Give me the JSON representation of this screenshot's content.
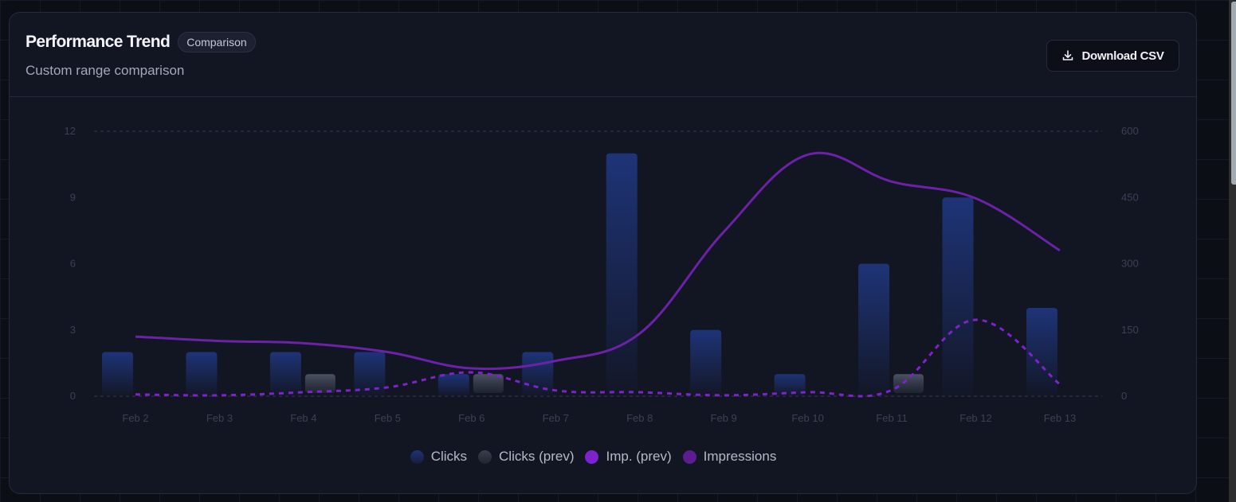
{
  "header": {
    "title": "Performance Trend",
    "badge": "Comparison",
    "subtitle": "Custom range comparison",
    "download_label": "Download CSV",
    "download_icon": "download-icon"
  },
  "legend": [
    {
      "label": "Clicks",
      "color": "#1e3a8a"
    },
    {
      "label": "Clicks (prev)",
      "color": "#374151"
    },
    {
      "label": "Imp. (prev)",
      "color": "#7e22ce"
    },
    {
      "label": "Impressions",
      "color": "#6b21a8"
    }
  ],
  "chart_data": {
    "type": "bar",
    "title": "Performance Trend",
    "subtitle": "Custom range comparison",
    "categories": [
      "Feb 2",
      "Feb 3",
      "Feb 4",
      "Feb 5",
      "Feb 6",
      "Feb 7",
      "Feb 8",
      "Feb 9",
      "Feb 10",
      "Feb 11",
      "Feb 12",
      "Feb 13"
    ],
    "series": [
      {
        "name": "Clicks",
        "type": "bar",
        "axis": "left",
        "color": "#1e3a8a",
        "values": [
          2,
          2,
          2,
          2,
          1,
          2,
          11,
          3,
          1,
          6,
          9,
          4
        ]
      },
      {
        "name": "Clicks (prev)",
        "type": "bar",
        "axis": "left",
        "color": "#374151",
        "values": [
          0,
          0,
          1,
          0,
          1,
          0,
          0,
          0,
          0,
          1,
          0,
          0
        ]
      },
      {
        "name": "Imp. (prev)",
        "type": "line",
        "style": "dashed",
        "axis": "right",
        "color": "#7e22ce",
        "values": [
          4,
          2,
          9,
          20,
          54,
          13,
          9,
          2,
          9,
          14,
          173,
          27
        ]
      },
      {
        "name": "Impressions",
        "type": "line",
        "style": "solid",
        "axis": "right",
        "color": "#6b21a8",
        "values": [
          135,
          125,
          120,
          100,
          63,
          80,
          142,
          372,
          547,
          486,
          448,
          330
        ]
      }
    ],
    "y_left": {
      "ticks": [
        0,
        3,
        6,
        9,
        12
      ],
      "range": [
        0,
        12
      ]
    },
    "y_right": {
      "ticks": [
        0,
        150,
        300,
        450,
        600
      ],
      "range": [
        0,
        600
      ]
    },
    "xlabel": "",
    "ylabel": "",
    "grid": "dashed horizontal at 0 and max",
    "legend_position": "bottom"
  }
}
